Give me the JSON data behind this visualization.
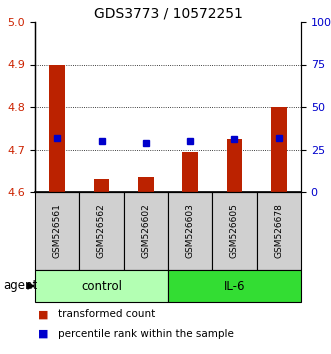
{
  "title": "GDS3773 / 10572251",
  "samples": [
    "GSM526561",
    "GSM526562",
    "GSM526602",
    "GSM526603",
    "GSM526605",
    "GSM526678"
  ],
  "red_values": [
    4.9,
    4.63,
    4.635,
    4.695,
    4.725,
    4.8
  ],
  "blue_values": [
    32,
    30,
    29,
    30,
    31,
    32
  ],
  "ylim_left": [
    4.6,
    5.0
  ],
  "ylim_right": [
    0,
    100
  ],
  "yticks_left": [
    4.6,
    4.7,
    4.8,
    4.9,
    5.0
  ],
  "yticks_right": [
    0,
    25,
    50,
    75,
    100
  ],
  "ytick_labels_right": [
    "0",
    "25",
    "50",
    "75",
    "100%"
  ],
  "groups": [
    {
      "label": "control",
      "indices": [
        0,
        1,
        2
      ],
      "color": "#b3ffb3"
    },
    {
      "label": "IL-6",
      "indices": [
        3,
        4,
        5
      ],
      "color": "#33dd33"
    }
  ],
  "bar_color": "#bb2200",
  "dot_color": "#0000cc",
  "bar_bottom": 4.6,
  "legend_red_label": "transformed count",
  "legend_blue_label": "percentile rank within the sample",
  "agent_label": "agent",
  "left_tick_color": "#cc2200",
  "right_tick_color": "#0000cc",
  "sample_bg_color": "#d0d0d0",
  "bar_width": 0.35
}
